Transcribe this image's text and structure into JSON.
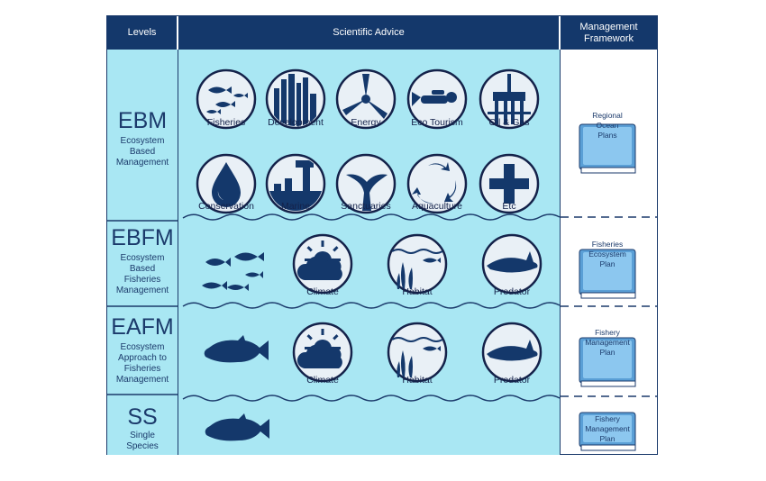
{
  "headers": {
    "levels": "Levels",
    "advice": "Scientific Advice",
    "management": "Management Framework"
  },
  "levels": [
    {
      "abbr": "EBM",
      "desc": [
        "Ecosystem",
        "Based",
        "Management"
      ]
    },
    {
      "abbr": "EBFM",
      "desc": [
        "Ecosystem",
        "Based",
        "Fisheries",
        "Management"
      ]
    },
    {
      "abbr": "EAFM",
      "desc": [
        "Ecosystem",
        "Approach to",
        "Fisheries",
        "Management"
      ]
    },
    {
      "abbr": "SS",
      "desc": [
        "Single",
        "Species"
      ]
    }
  ],
  "ebm_icons": [
    {
      "label": "Fisheries",
      "icon": "fish-school-icon"
    },
    {
      "label": "Development",
      "icon": "city-buildings-icon"
    },
    {
      "label": "Energy",
      "icon": "wind-turbine-icon"
    },
    {
      "label": "Eco Tourism",
      "icon": "diver-icon"
    },
    {
      "label": "Oil & Gas",
      "icon": "oil-rig-icon"
    },
    {
      "label": "Conservation",
      "icon": "water-drop-icon"
    },
    {
      "label": "Marine",
      "icon": "marine-dumping-icon"
    },
    {
      "label": "Sanctuaries",
      "icon": "whale-tail-icon"
    },
    {
      "label": "Aquaculture",
      "icon": "fish-cycle-icon"
    },
    {
      "label": "Etc",
      "icon": "plus-icon"
    }
  ],
  "ebfm_icons": [
    {
      "label": "Climate",
      "icon": "sun-cloud-icon"
    },
    {
      "label": "Habitat",
      "icon": "seagrass-fish-icon"
    },
    {
      "label": "Predator",
      "icon": "shark-icon"
    }
  ],
  "eafm_icons": [
    {
      "label": "Climate",
      "icon": "sun-cloud-icon"
    },
    {
      "label": "Habitat",
      "icon": "seagrass-fish-icon"
    },
    {
      "label": "Predator",
      "icon": "shark-icon"
    }
  ],
  "plans": [
    {
      "lines": [
        "Regional",
        "Ocean",
        "Plans"
      ]
    },
    {
      "lines": [
        "Fisheries",
        "Ecosystem",
        "Plan"
      ]
    },
    {
      "lines": [
        "Fishery",
        "Management",
        "Plan"
      ]
    },
    {
      "lines": [
        "Fishery",
        "Management",
        "Plan"
      ]
    }
  ],
  "colors": {
    "navy": "#14386b",
    "panel": "#a9e7f3",
    "ink": "#1b3a6b",
    "icon_bg": "#e9f0f6",
    "book": "#5a9fd6"
  }
}
